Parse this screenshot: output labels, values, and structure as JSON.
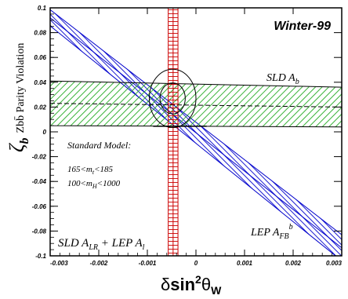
{
  "chart_data": {
    "type": "scatter",
    "title": "Winter-99",
    "xlabel": {
      "prefix": "δ",
      "main": "sin",
      "sup": "2",
      "theta": "θ",
      "sub": "W"
    },
    "ylabel": {
      "symbol": "ζ",
      "sub": "b",
      "text": "Zbb̄ Parity Violation"
    },
    "xlim": [
      -0.003,
      0.003
    ],
    "ylim": [
      -0.1,
      0.1
    ],
    "x_ticks": [
      -0.003,
      -0.002,
      -0.001,
      0,
      0.001,
      0.002,
      0.003
    ],
    "y_ticks": [
      -0.1,
      -0.08,
      -0.06,
      -0.04,
      -0.02,
      0,
      0.02,
      0.04,
      0.06,
      0.08,
      0.1
    ],
    "x_tick_labels": [
      "-0.003",
      "-0.002",
      "-0.001",
      "0",
      "0.001",
      "0.002",
      "0.003"
    ],
    "y_tick_labels": [
      "-0.1",
      "-0.08",
      "-0.06",
      "-0.04",
      "-0.02",
      "0",
      "0.02",
      "0.04",
      "0.06",
      "0.08",
      "0.1"
    ],
    "grid": false,
    "bands": [
      {
        "name": "SLD A_LR + LEP A_l",
        "orientation": "vertical",
        "x_range": [
          -0.00057,
          -0.00037
        ],
        "x_center": -0.00047,
        "color": "#cc0000"
      },
      {
        "name": "SLD A_b",
        "orientation": "horizontal",
        "y_left": [
          0.005,
          0.041
        ],
        "y_right": [
          0.004,
          0.036
        ],
        "center_left": 0.023,
        "center_right": 0.02,
        "color": "#22aa22"
      },
      {
        "name": "LEP A_FB^b",
        "orientation": "diagonal",
        "upper": [
          [
            -0.00305,
            0.1
          ],
          [
            0.003,
            -0.083
          ]
        ],
        "lower": [
          [
            -0.00305,
            0.087
          ],
          [
            0.003,
            -0.104
          ]
        ],
        "center": [
          [
            -0.00305,
            0.0935
          ],
          [
            0.003,
            -0.0935
          ]
        ],
        "color": "#0000cc"
      }
    ],
    "ellipses": [
      {
        "cx": -0.00048,
        "cy": 0.027,
        "rx": 0.00026,
        "ry": 0.0125
      },
      {
        "cx": -0.00048,
        "cy": 0.027,
        "rx": 0.00048,
        "ry": 0.0235
      }
    ],
    "standard_model_line": {
      "x": [
        -0.00088,
        0.00022
      ],
      "y": 0.0045
    },
    "annotations": {
      "sld_ab": {
        "main": "SLD A",
        "sub": "b"
      },
      "lep_afb": {
        "main": "LEP A",
        "sub": "FB",
        "sup": "b"
      },
      "sld_alr": {
        "a": "SLD A",
        "a_sub": "LR",
        "b": " + LEP A",
        "b_sub": "l"
      },
      "standard_model": "Standard Model:",
      "mt_range": {
        "pre": "165<m",
        "sub": "t",
        "post": "<185"
      },
      "mh_range": {
        "pre": "100<m",
        "sub": "H",
        "post": "<1000"
      }
    },
    "colors": {
      "red": "#cc0000",
      "green": "#22aa22",
      "blue": "#0000cc",
      "axis": "#000000"
    }
  }
}
